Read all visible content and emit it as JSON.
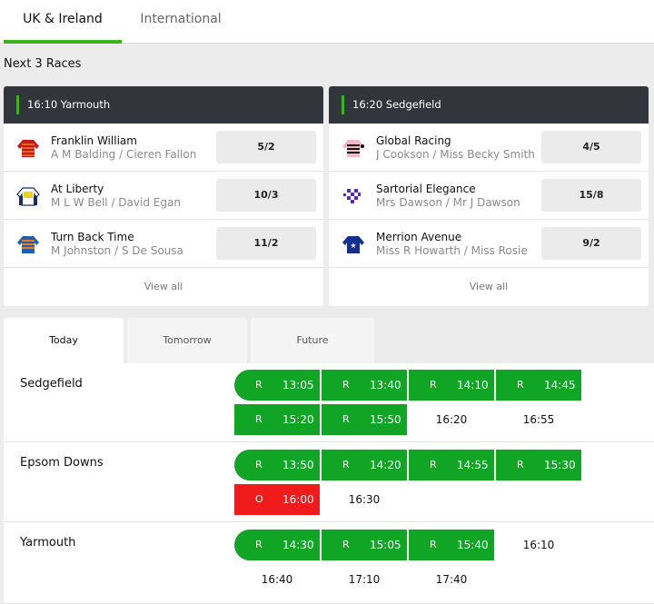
{
  "tabs": {
    "uk": "UK & Ireland",
    "intl": "International"
  },
  "next_races": {
    "title": "Next 3 Races",
    "view_all": "View all",
    "cards": [
      {
        "header": "16:10 Yarmouth",
        "runners": [
          {
            "name": "Franklin William",
            "connections": "A M Balding / Cieren Fallon",
            "odds": "5/2",
            "silk": "silk-red-icon"
          },
          {
            "name": "At Liberty",
            "connections": "M L W Bell / David Egan",
            "odds": "10/3",
            "silk": "silk-navy-yellow-icon"
          },
          {
            "name": "Turn Back Time",
            "connections": "M Johnston / S De Sousa",
            "odds": "11/2",
            "silk": "silk-blue-orange-icon"
          }
        ]
      },
      {
        "header": "16:20 Sedgefield",
        "runners": [
          {
            "name": "Global Racing",
            "connections": "J Cookson / Miss Becky Smith",
            "odds": "4/5",
            "silk": "silk-pink-black-icon"
          },
          {
            "name": "Sartorial Elegance",
            "connections": "Mrs Dawson / Mr J Dawson",
            "odds": "15/8",
            "silk": "silk-purple-check-icon"
          },
          {
            "name": "Merrion Avenue",
            "connections": "Miss R Howarth / Miss Rosie",
            "odds": "9/2",
            "silk": "silk-blue-star-icon"
          }
        ]
      }
    ]
  },
  "day_tabs": {
    "today": "Today",
    "tomorrow": "Tomorrow",
    "future": "Future"
  },
  "meetings": [
    {
      "venue": "Sedgefield",
      "races": [
        {
          "time": "13:05",
          "status": "R"
        },
        {
          "time": "13:40",
          "status": "R"
        },
        {
          "time": "14:10",
          "status": "R"
        },
        {
          "time": "14:45",
          "status": "R"
        },
        {
          "time": "15:20",
          "status": "R"
        },
        {
          "time": "15:50",
          "status": "R"
        },
        {
          "time": "16:20",
          "status": ""
        },
        {
          "time": "16:55",
          "status": ""
        }
      ]
    },
    {
      "venue": "Epsom Downs",
      "races": [
        {
          "time": "13:50",
          "status": "R"
        },
        {
          "time": "14:20",
          "status": "R"
        },
        {
          "time": "14:55",
          "status": "R"
        },
        {
          "time": "15:30",
          "status": "R"
        },
        {
          "time": "16:00",
          "status": "O"
        },
        {
          "time": "16:30",
          "status": ""
        }
      ]
    },
    {
      "venue": "Yarmouth",
      "races": [
        {
          "time": "14:30",
          "status": "R"
        },
        {
          "time": "15:05",
          "status": "R"
        },
        {
          "time": "15:40",
          "status": "R"
        },
        {
          "time": "16:10",
          "status": ""
        },
        {
          "time": "16:40",
          "status": ""
        },
        {
          "time": "17:10",
          "status": ""
        },
        {
          "time": "17:40",
          "status": ""
        }
      ]
    }
  ],
  "colors": {
    "accent": "#3cb31a",
    "result": "#11a526",
    "off": "#f01c1c",
    "header": "#33353d"
  }
}
